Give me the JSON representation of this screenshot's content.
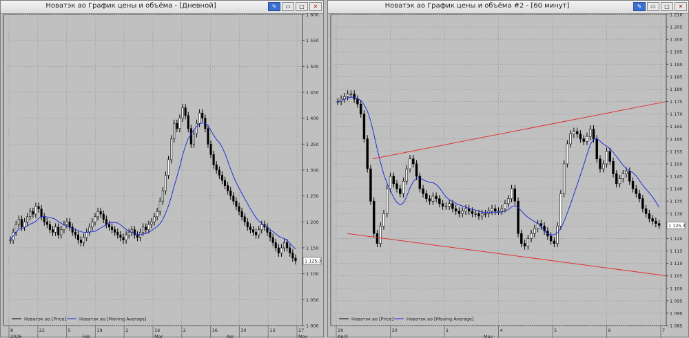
{
  "windows": [
    {
      "title": "Новатэк ао График цены и объёма - [Дневной]",
      "legend": {
        "price": "Новатэк ао [Price]",
        "ma": "Новатэк ао [Moving Average]"
      },
      "price_label": "1 125,3"
    },
    {
      "title": "Новатэк ао График цены и объёма #2 - [60 минут]",
      "legend": {
        "price": "Новатэк ао [Price]",
        "ma": "Новатэк ао [Moving Average]"
      },
      "price_label": "1 125,3"
    }
  ],
  "colors": {
    "up": "#ffffff",
    "down": "#000000",
    "ma": "#1f2fd6",
    "trend": "#e03030",
    "plot_bg": "#c0c0c0"
  },
  "chart_data": [
    {
      "type": "candlestick",
      "series": [
        {
          "name": "Новатэк ао [Price]"
        },
        {
          "name": "Новатэк ао [Moving Average]"
        }
      ],
      "ylim": [
        1000,
        1600
      ],
      "y_ticks": [
        "1 600",
        "1 550",
        "1 500",
        "1 450",
        "1 400",
        "1 350",
        "1 300",
        "1 250",
        "1 200",
        "1 150",
        "1 100",
        "1 050",
        "1 000"
      ],
      "x_ticks": [
        "8",
        "22",
        "5",
        "19",
        "2",
        "16",
        "2",
        "16",
        "30",
        "13",
        "27"
      ],
      "x_sub": [
        "2026",
        "Feb",
        "Mar",
        "Apr",
        "May"
      ],
      "closes": [
        1165,
        1180,
        1195,
        1205,
        1190,
        1200,
        1210,
        1220,
        1215,
        1230,
        1225,
        1210,
        1200,
        1195,
        1185,
        1180,
        1190,
        1175,
        1185,
        1195,
        1200,
        1190,
        1180,
        1175,
        1165,
        1160,
        1170,
        1180,
        1190,
        1200,
        1210,
        1220,
        1215,
        1205,
        1195,
        1190,
        1185,
        1180,
        1175,
        1170,
        1165,
        1175,
        1180,
        1185,
        1175,
        1170,
        1180,
        1190,
        1185,
        1195,
        1200,
        1210,
        1220,
        1240,
        1260,
        1290,
        1320,
        1360,
        1390,
        1380,
        1400,
        1420,
        1405,
        1380,
        1350,
        1370,
        1390,
        1410,
        1400,
        1380,
        1350,
        1330,
        1310,
        1300,
        1290,
        1280,
        1270,
        1260,
        1250,
        1240,
        1230,
        1220,
        1210,
        1200,
        1190,
        1185,
        1180,
        1175,
        1185,
        1195,
        1190,
        1180,
        1170,
        1160,
        1150,
        1140,
        1150,
        1160,
        1150,
        1140,
        1130,
        1125
      ]
    },
    {
      "type": "candlestick",
      "series": [
        {
          "name": "Новатэк ао [Price]"
        },
        {
          "name": "Новатэк ао [Moving Average]"
        }
      ],
      "ylim": [
        1085,
        1210
      ],
      "y_ticks": [
        "1 210",
        "1 205",
        "1 200",
        "1 195",
        "1 190",
        "1 185",
        "1 180",
        "1 175",
        "1 170",
        "1 165",
        "1 160",
        "1 155",
        "1 150",
        "1 145",
        "1 140",
        "1 135",
        "1 130",
        "1 125",
        "1 120",
        "1 115",
        "1 110",
        "1 105",
        "1 100",
        "1 095",
        "1 090",
        "1 085"
      ],
      "x_ticks": [
        "29",
        "30",
        "1",
        "4",
        "5",
        "6",
        "7"
      ],
      "x_sub": [
        "April",
        "May"
      ],
      "closes": [
        1175,
        1176,
        1177,
        1178,
        1178,
        1176,
        1174,
        1170,
        1160,
        1148,
        1135,
        1122,
        1118,
        1125,
        1130,
        1140,
        1145,
        1142,
        1140,
        1138,
        1143,
        1148,
        1152,
        1150,
        1145,
        1140,
        1138,
        1136,
        1135,
        1137,
        1136,
        1134,
        1133,
        1133,
        1134,
        1132,
        1131,
        1130,
        1131,
        1132,
        1131,
        1130,
        1130,
        1129,
        1130,
        1130,
        1131,
        1132,
        1131,
        1131,
        1132,
        1134,
        1136,
        1140,
        1135,
        1122,
        1118,
        1117,
        1120,
        1122,
        1124,
        1126,
        1125,
        1123,
        1121,
        1119,
        1118,
        1125,
        1138,
        1150,
        1158,
        1162,
        1163,
        1162,
        1160,
        1159,
        1161,
        1164,
        1160,
        1152,
        1148,
        1150,
        1155,
        1151,
        1146,
        1142,
        1144,
        1146,
        1147,
        1143,
        1140,
        1138,
        1136,
        1132,
        1130,
        1128,
        1127,
        1126,
        1125.3
      ],
      "trendlines": [
        {
          "x0": 0.125,
          "y0": 1152,
          "x1": 1.0,
          "y1": 1175
        },
        {
          "x0": 0.05,
          "y0": 1122,
          "x1": 1.0,
          "y1": 1105
        }
      ]
    }
  ]
}
